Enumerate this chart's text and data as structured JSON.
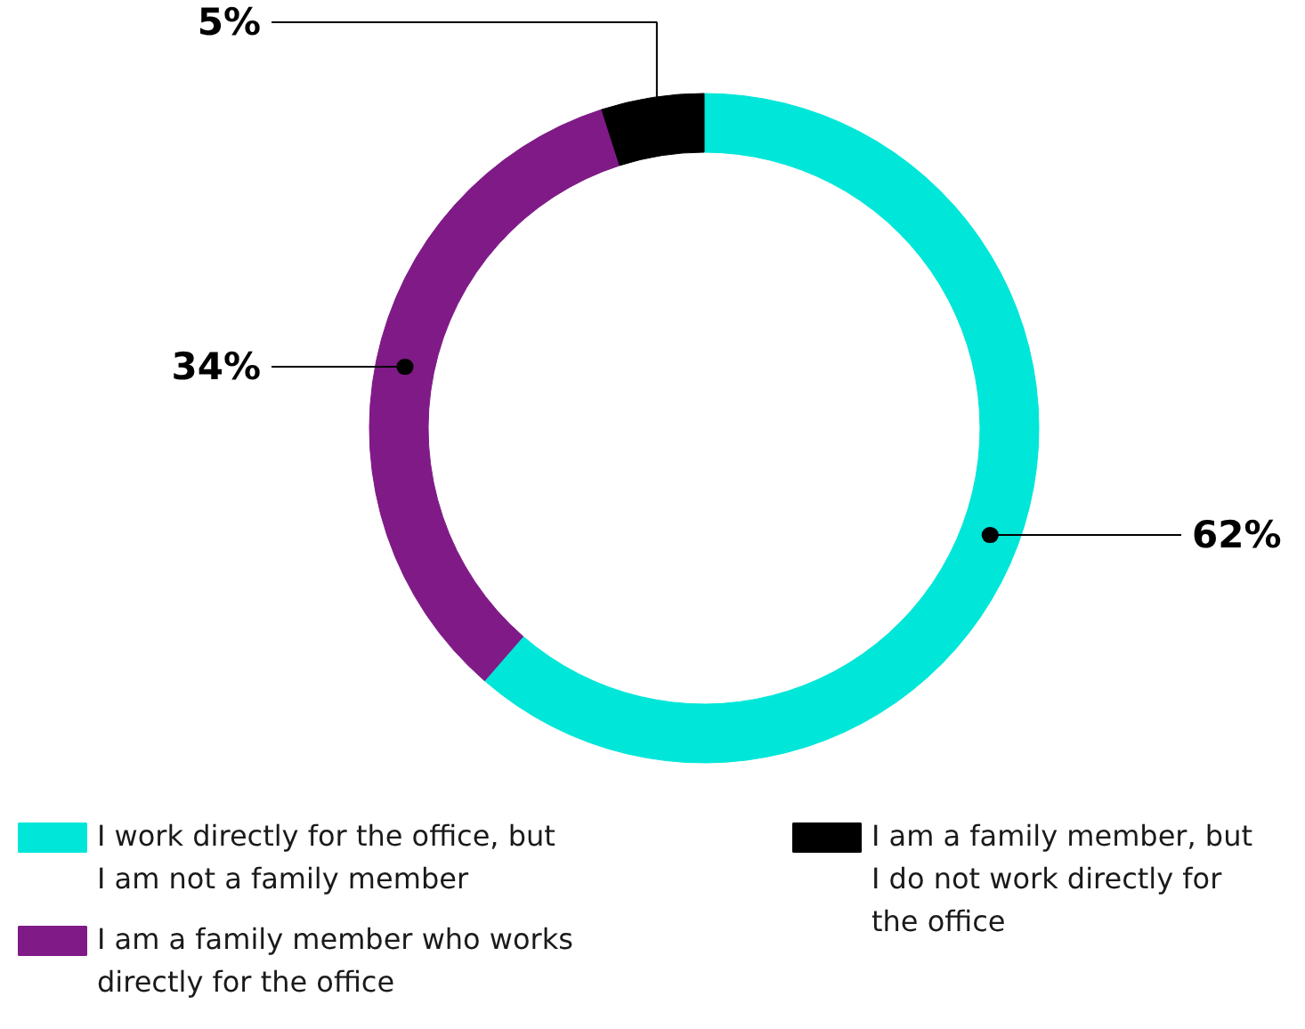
{
  "chart_data": {
    "type": "donut",
    "categories": [
      "I work directly for the office, but I am not a family member",
      "I am a family member who works directly for the office",
      "I am a family member, but I do not work directly for the office"
    ],
    "values": [
      62,
      34,
      5
    ],
    "colors": [
      "#00e6d8",
      "#7f1a87",
      "#000000"
    ],
    "value_labels": [
      "62%",
      "34%",
      "5%"
    ],
    "legend": "bottom"
  }
}
